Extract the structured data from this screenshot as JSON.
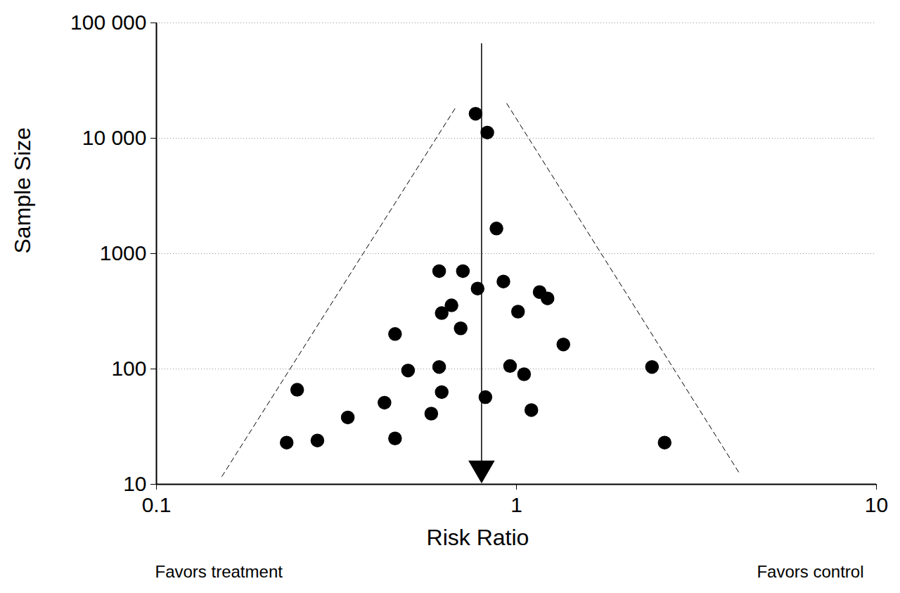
{
  "chart_data": {
    "type": "scatter",
    "x_label": "Risk Ratio",
    "y_label": "Sample Size",
    "annotations": [
      "Favors treatment",
      "Favors control"
    ],
    "log": true,
    "grid": "y",
    "marker": "circle",
    "color": "#000000",
    "xlim": [
      0.1,
      10
    ],
    "xticks": [
      0.1,
      1,
      10
    ],
    "ylim": [
      10,
      100000
    ],
    "yticks": [
      10,
      100,
      1000,
      {
        "value": 10000,
        "label": "10 000"
      },
      {
        "value": 100000,
        "label": "100 000"
      }
    ],
    "x": [
      0.77,
      0.83,
      0.88,
      0.61,
      0.71,
      0.78,
      0.92,
      1.16,
      1.22,
      0.66,
      0.62,
      1.01,
      0.7,
      0.46,
      1.35,
      0.5,
      0.61,
      0.96,
      2.38,
      1.05,
      0.246,
      0.62,
      0.82,
      0.43,
      0.58,
      1.1,
      0.34,
      0.46,
      0.28,
      0.23,
      2.58
    ],
    "values": [
      16300,
      11200,
      1650,
      705,
      705,
      498,
      573,
      464,
      409,
      356,
      305,
      314,
      225,
      201,
      163,
      97,
      104,
      106,
      104,
      90,
      66,
      63,
      57,
      51,
      41,
      44,
      38,
      25,
      24,
      23,
      23
    ],
    "reference_line": {
      "x": 0.8,
      "y": [
        66000,
        12
      ]
    },
    "funnel": {
      "line_style": "dashed",
      "lines": [
        {
          "x": [
            0.152,
            0.676
          ],
          "y": [
            11.7,
            18200
          ]
        },
        {
          "x": [
            0.94,
            4.16
          ],
          "y": [
            20000,
            12.5
          ]
        }
      ]
    }
  }
}
